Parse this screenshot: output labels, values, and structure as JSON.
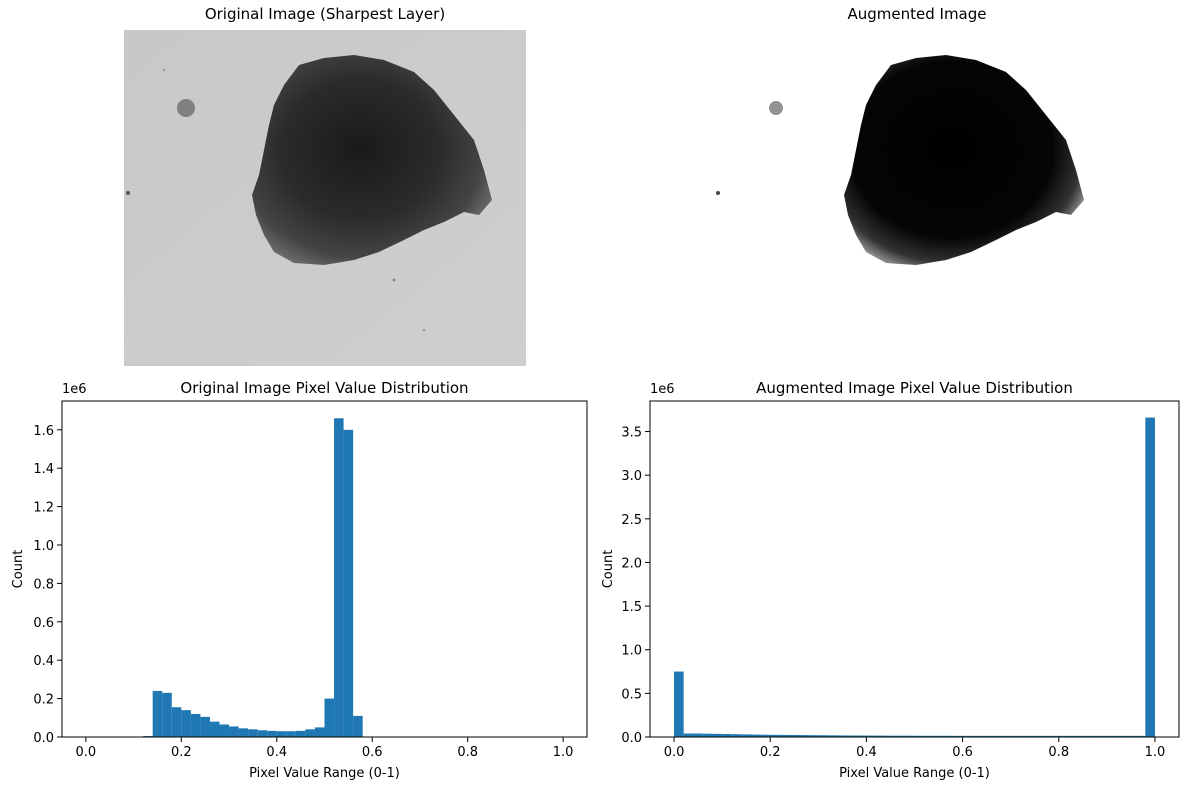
{
  "panels": {
    "original_image": {
      "title": "Original Image (Sharpest Layer)"
    },
    "augmented_image": {
      "title": "Augmented Image"
    }
  },
  "chart_data": [
    {
      "type": "bar",
      "title": "Original Image Pixel Value Distribution",
      "xlabel": "Pixel Value Range (0-1)",
      "ylabel": "Count",
      "y_offset_label": "1e6",
      "xlim": [
        -0.05,
        1.05
      ],
      "ylim": [
        0,
        1.75
      ],
      "xticks": [
        0.0,
        0.2,
        0.4,
        0.6,
        0.8,
        1.0
      ],
      "xtick_labels": [
        "0.0",
        "0.2",
        "0.4",
        "0.6",
        "0.8",
        "1.0"
      ],
      "yticks": [
        0.0,
        0.2,
        0.4,
        0.6,
        0.8,
        1.0,
        1.2,
        1.4,
        1.6
      ],
      "ytick_labels": [
        "0.0",
        "0.2",
        "0.4",
        "0.6",
        "0.8",
        "1.0",
        "1.2",
        "1.4",
        "1.6"
      ],
      "bins": 50,
      "bin_width": 0.02,
      "bar_color": "#1f77b4",
      "grid": false,
      "bin_starts": [
        0.1,
        0.12,
        0.14,
        0.16,
        0.18,
        0.2,
        0.22,
        0.24,
        0.26,
        0.28,
        0.3,
        0.32,
        0.34,
        0.36,
        0.38,
        0.4,
        0.42,
        0.44,
        0.46,
        0.48,
        0.5,
        0.52,
        0.54,
        0.56
      ],
      "values": [
        0.0,
        0.005,
        0.24,
        0.23,
        0.155,
        0.14,
        0.12,
        0.105,
        0.08,
        0.065,
        0.055,
        0.045,
        0.04,
        0.035,
        0.032,
        0.03,
        0.03,
        0.032,
        0.04,
        0.05,
        0.2,
        1.66,
        1.6,
        0.11
      ]
    },
    {
      "type": "bar",
      "title": "Augmented Image Pixel Value Distribution",
      "xlabel": "Pixel Value Range (0-1)",
      "ylabel": "Count",
      "y_offset_label": "1e6",
      "xlim": [
        -0.05,
        1.05
      ],
      "ylim": [
        0,
        3.85
      ],
      "xticks": [
        0.0,
        0.2,
        0.4,
        0.6,
        0.8,
        1.0
      ],
      "xtick_labels": [
        "0.0",
        "0.2",
        "0.4",
        "0.6",
        "0.8",
        "1.0"
      ],
      "yticks": [
        0.0,
        0.5,
        1.0,
        1.5,
        2.0,
        2.5,
        3.0,
        3.5
      ],
      "ytick_labels": [
        "0.0",
        "0.5",
        "1.0",
        "1.5",
        "2.0",
        "2.5",
        "3.0",
        "3.5"
      ],
      "bins": 50,
      "bin_width": 0.02,
      "bar_color": "#1f77b4",
      "grid": false,
      "bin_starts": [
        0.0,
        0.02,
        0.04,
        0.06,
        0.08,
        0.1,
        0.12,
        0.14,
        0.16,
        0.18,
        0.2,
        0.22,
        0.24,
        0.26,
        0.28,
        0.3,
        0.32,
        0.34,
        0.36,
        0.38,
        0.4,
        0.42,
        0.44,
        0.46,
        0.48,
        0.5,
        0.52,
        0.54,
        0.56,
        0.58,
        0.6,
        0.62,
        0.64,
        0.66,
        0.68,
        0.7,
        0.72,
        0.74,
        0.76,
        0.78,
        0.8,
        0.82,
        0.84,
        0.86,
        0.88,
        0.9,
        0.92,
        0.94,
        0.96,
        0.98
      ],
      "values": [
        0.75,
        0.04,
        0.04,
        0.038,
        0.036,
        0.034,
        0.032,
        0.03,
        0.028,
        0.026,
        0.025,
        0.024,
        0.023,
        0.022,
        0.021,
        0.02,
        0.019,
        0.018,
        0.017,
        0.017,
        0.016,
        0.016,
        0.015,
        0.015,
        0.015,
        0.014,
        0.014,
        0.014,
        0.014,
        0.013,
        0.013,
        0.013,
        0.013,
        0.013,
        0.013,
        0.013,
        0.013,
        0.013,
        0.013,
        0.013,
        0.013,
        0.013,
        0.013,
        0.013,
        0.013,
        0.013,
        0.013,
        0.013,
        0.013,
        3.66
      ]
    }
  ]
}
